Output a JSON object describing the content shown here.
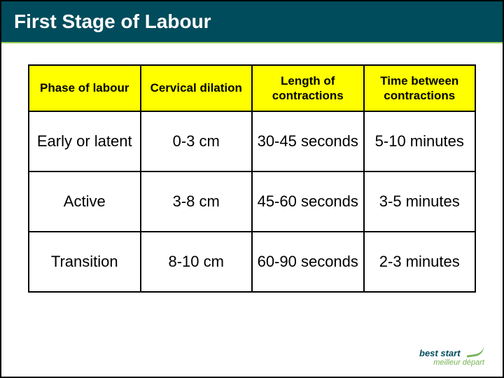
{
  "slide": {
    "title": "First Stage of Labour",
    "title_bg": "#004c5c",
    "title_color": "#ffffff",
    "accent_rule": "#a0d05a"
  },
  "table": {
    "header_bg": "#ffff00",
    "border_color": "#000000",
    "header_fontsize": 17,
    "cell_fontsize": 22,
    "columns": [
      "Phase of labour",
      "Cervical dilation",
      "Length of contractions",
      "Time between contractions"
    ],
    "rows": [
      [
        "Early or latent",
        "0-3 cm",
        "30-45 seconds",
        "5-10 minutes"
      ],
      [
        "Active",
        "3-8 cm",
        "45-60 seconds",
        "3-5 minutes"
      ],
      [
        "Transition",
        "8-10 cm",
        "60-90 seconds",
        "2-3 minutes"
      ]
    ]
  },
  "logo": {
    "line1": "best start",
    "line2": "meilleur départ",
    "color_primary": "#004c5c",
    "color_accent": "#77b255"
  }
}
